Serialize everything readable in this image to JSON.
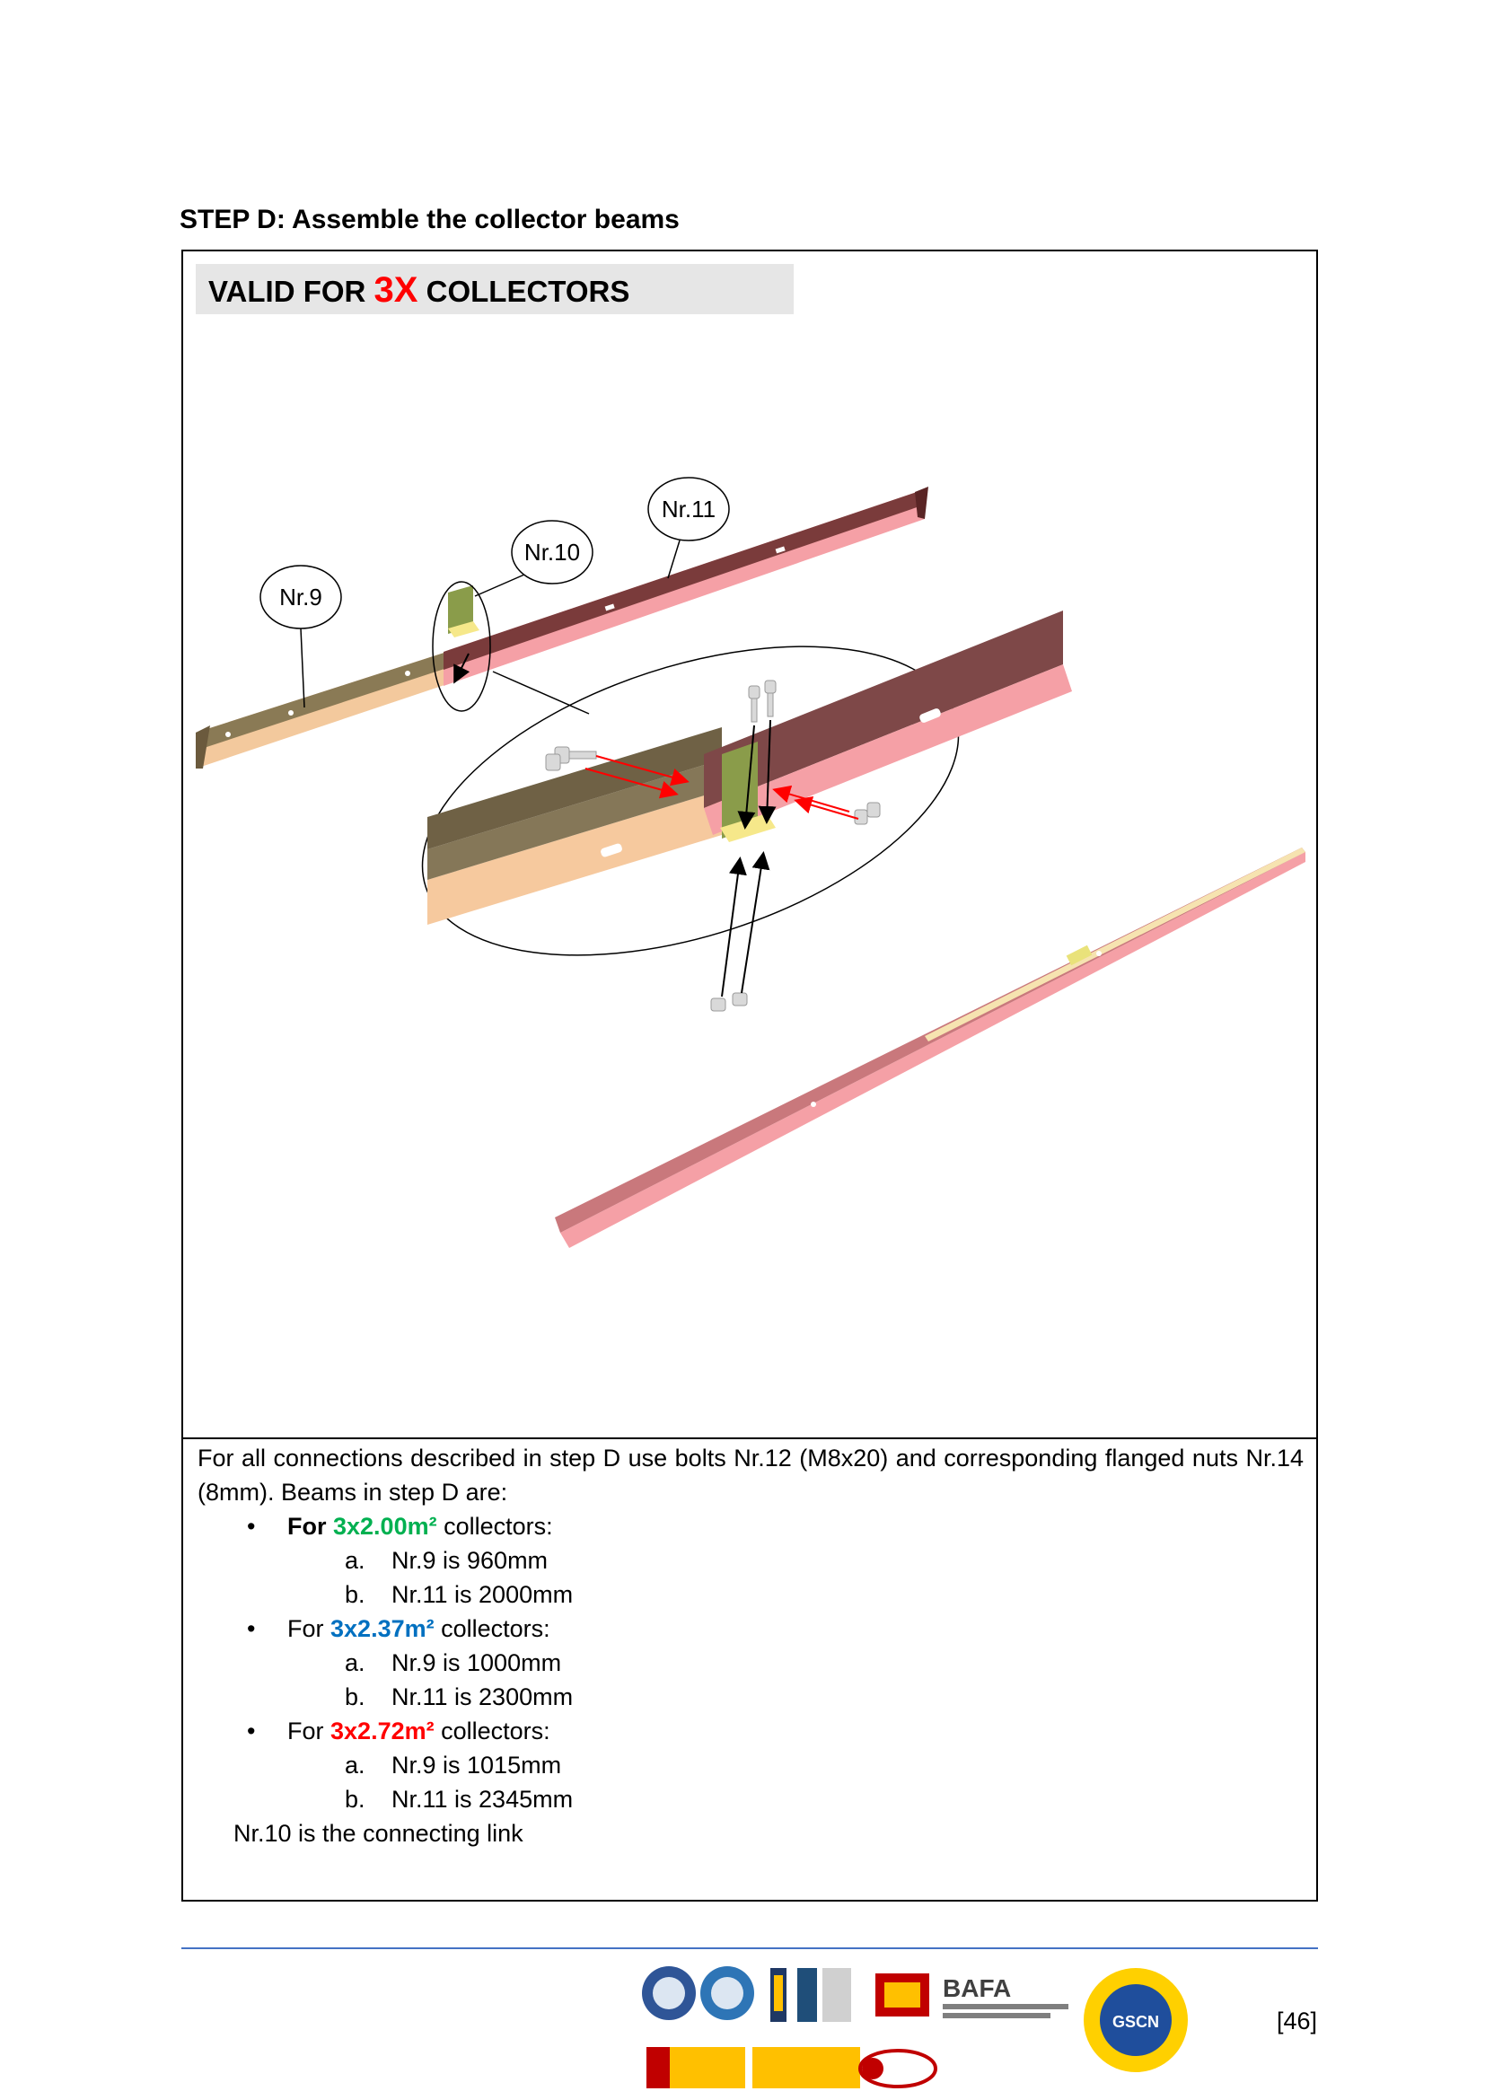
{
  "step_title": "STEP D: Assemble the collector beams",
  "banner": {
    "prefix": "VALID FOR ",
    "highlight": "3X",
    "suffix": " COLLECTORS"
  },
  "callouts": {
    "nr9": "Nr.9",
    "nr10": "Nr.10",
    "nr11": "Nr.11"
  },
  "intro": "For all connections described in step D use bolts Nr.12 (M8x20) and corresponding flanged nuts Nr.14 (8mm). Beams in step D are:",
  "bullets": [
    {
      "prefix": "For ",
      "size": "3x2.00m²",
      "suffix": " collectors:",
      "items": [
        "Nr.9 is 960mm",
        "Nr.11 is 2000mm"
      ]
    },
    {
      "prefix": "For ",
      "size": "3x2.37m²",
      "suffix": " collectors:",
      "items": [
        "Nr.9 is 1000mm",
        "Nr.11 is 2300mm"
      ]
    },
    {
      "prefix": "For ",
      "size": "3x2.72m²",
      "suffix": " collectors:",
      "items": [
        "Nr.9 is 1015mm",
        "Nr.11 is 2345mm"
      ]
    }
  ],
  "list_letters": [
    "a.",
    "b."
  ],
  "bullet_symbol": "•",
  "note": "Nr.10 is the connecting link",
  "page_number": "[46]",
  "logos": {
    "bafa_title": "BAFA",
    "gscn": "GSCN"
  },
  "colors": {
    "banner_highlight": "#ff0000",
    "green": "#00b050",
    "blue": "#0070c0",
    "red": "#ff0000",
    "footer_line": "#4472c4"
  }
}
